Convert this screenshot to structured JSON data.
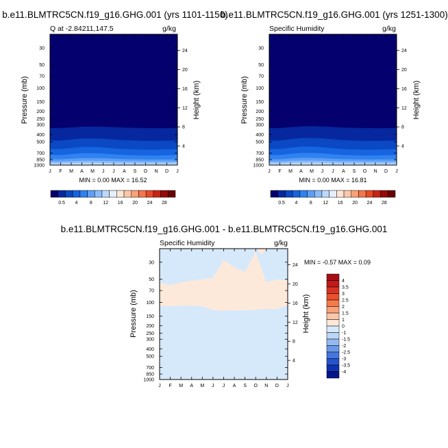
{
  "chart_data": [
    {
      "type": "heatmap",
      "title": "b.e11.BLMTRC5CN.f19_g16.GHG.001 (yrs 1101-1150)",
      "left_label": "Q at -2.84211,147.5",
      "right_label": "g/kg",
      "ylabel": "Pressure (mb)",
      "ylabel_right": "Height (km)",
      "y_scale": "log",
      "ylim": [
        1000,
        20
      ],
      "x_ticks": [
        "J",
        "F",
        "M",
        "A",
        "M",
        "J",
        "J",
        "A",
        "S",
        "O",
        "N",
        "D",
        "J"
      ],
      "y_ticks": [
        "30",
        "50",
        "70",
        "100",
        "150",
        "200",
        "250",
        "300",
        "400",
        "500",
        "700",
        "850",
        "1000"
      ],
      "height_ticks": [
        "24",
        "20",
        "16",
        "12",
        "8",
        "4"
      ],
      "stats": "MIN =   0.00 MAX =  16.52",
      "levels": [
        "0.5",
        "4",
        "8",
        "12",
        "16",
        "20",
        "24",
        "28"
      ],
      "colors": [
        "#04006e",
        "#06279e",
        "#0a48c4",
        "#1664e0",
        "#2f82f0",
        "#5c9ef6",
        "#8cbcfa",
        "#bcd9fc",
        "#e6f0fd",
        "#fde6d6",
        "#fcc6a8",
        "#f9a078",
        "#f4764c",
        "#e84a28",
        "#c82414",
        "#980a06",
        "#6a0202"
      ],
      "band_tops_mb": [
        [
          1000,
          1000,
          990,
          985,
          985,
          988,
          990,
          995,
          995,
          1000,
          1000,
          1000,
          1000
        ],
        [
          950,
          950,
          940,
          935,
          935,
          940,
          945,
          950,
          950,
          955,
          955,
          955,
          950
        ],
        [
          900,
          900,
          890,
          880,
          880,
          885,
          890,
          895,
          895,
          900,
          900,
          900,
          900
        ],
        [
          840,
          840,
          825,
          810,
          810,
          815,
          825,
          835,
          840,
          845,
          845,
          845,
          840
        ],
        [
          740,
          740,
          720,
          700,
          700,
          710,
          725,
          740,
          745,
          750,
          750,
          745,
          740
        ],
        [
          620,
          620,
          600,
          580,
          580,
          590,
          605,
          620,
          625,
          630,
          630,
          625,
          620
        ],
        [
          480,
          480,
          465,
          450,
          450,
          455,
          465,
          475,
          480,
          485,
          485,
          482,
          480
        ],
        [
          330,
          330,
          325,
          318,
          315,
          318,
          322,
          326,
          328,
          330,
          332,
          332,
          330
        ]
      ]
    },
    {
      "type": "heatmap",
      "title": "b.e11.BLMTRC5CN.f19_g16.GHG.001 (yrs 1251-1300)",
      "left_label": "Specific Humidity",
      "right_label": "g/kg",
      "ylabel": "Pressure (mb)",
      "ylabel_right": "Height (km)",
      "y_scale": "log",
      "ylim": [
        1000,
        20
      ],
      "x_ticks": [
        "J",
        "F",
        "M",
        "A",
        "M",
        "J",
        "J",
        "A",
        "S",
        "O",
        "N",
        "D",
        "J"
      ],
      "y_ticks": [
        "30",
        "50",
        "70",
        "100",
        "150",
        "200",
        "250",
        "300",
        "400",
        "500",
        "700",
        "850",
        "1000"
      ],
      "height_ticks": [
        "24",
        "20",
        "16",
        "12",
        "8",
        "4"
      ],
      "stats": "MIN =   0.00 MAX =  16.81",
      "levels": [
        "0.5",
        "4",
        "8",
        "12",
        "16",
        "20",
        "24",
        "28"
      ],
      "colors": [
        "#04006e",
        "#06279e",
        "#0a48c4",
        "#1664e0",
        "#2f82f0",
        "#5c9ef6",
        "#8cbcfa",
        "#bcd9fc",
        "#e6f0fd",
        "#fde6d6",
        "#fcc6a8",
        "#f9a078",
        "#f4764c",
        "#e84a28",
        "#c82414",
        "#980a06",
        "#6a0202"
      ],
      "band_tops_mb": [
        [
          1000,
          1000,
          985,
          980,
          980,
          985,
          990,
          995,
          995,
          1000,
          1000,
          1000,
          1000
        ],
        [
          950,
          950,
          935,
          930,
          930,
          935,
          945,
          950,
          950,
          955,
          955,
          955,
          950
        ],
        [
          900,
          900,
          885,
          875,
          875,
          880,
          890,
          895,
          895,
          900,
          900,
          900,
          900
        ],
        [
          840,
          840,
          820,
          805,
          805,
          812,
          825,
          835,
          840,
          845,
          845,
          845,
          840
        ],
        [
          740,
          740,
          715,
          695,
          695,
          705,
          725,
          740,
          745,
          750,
          750,
          745,
          740
        ],
        [
          620,
          620,
          595,
          575,
          575,
          585,
          605,
          620,
          625,
          630,
          630,
          625,
          620
        ],
        [
          480,
          480,
          460,
          445,
          445,
          450,
          462,
          475,
          480,
          485,
          485,
          482,
          480
        ],
        [
          330,
          330,
          322,
          315,
          312,
          315,
          320,
          326,
          328,
          330,
          332,
          332,
          330
        ]
      ]
    },
    {
      "type": "heatmap",
      "title": "b.e11.BLMTRC5CN.f19_g16.GHG.001 - b.e11.BLMTRC5CN.f19_g16.GHG.001",
      "left_label": "Specific Humidity",
      "right_label": "g/kg",
      "ylabel": "Pressure (mb)",
      "ylabel_right": "Height (km)",
      "y_scale": "log",
      "ylim": [
        1000,
        20
      ],
      "x_ticks": [
        "J",
        "F",
        "M",
        "A",
        "M",
        "J",
        "J",
        "A",
        "S",
        "O",
        "N",
        "D",
        "J"
      ],
      "y_ticks": [
        "30",
        "50",
        "70",
        "100",
        "150",
        "200",
        "250",
        "300",
        "400",
        "500",
        "700",
        "850",
        "1000"
      ],
      "height_ticks": [
        "24",
        "20",
        "16",
        "12",
        "8",
        "4"
      ],
      "stats": "MIN =  -0.57 MAX =   0.09",
      "levels": [
        "4",
        "3.5",
        "3",
        "2.5",
        "2",
        "1.5",
        "1",
        "0",
        "-1",
        "-1.5",
        "-2",
        "-2.5",
        "-3",
        "-3.5",
        "-4"
      ],
      "colors": [
        "#a50f15",
        "#c2191b",
        "#d93222",
        "#ea4f2e",
        "#f47a4a",
        "#f9a27a",
        "#fcc6a8",
        "#fde9da",
        "#d6e9fb",
        "#bcd6f7",
        "#94b9f1",
        "#6c98e8",
        "#4476de",
        "#2454cf",
        "#0f32b0",
        "#04158a"
      ],
      "positive_band_mb": {
        "top": [
          55,
          60,
          55,
          52,
          50,
          48,
          28,
          35,
          40,
          22,
          55,
          50,
          52
        ],
        "bottom": [
          110,
          112,
          110,
          110,
          112,
          125,
          128,
          126,
          126,
          125,
          120,
          122,
          108
        ]
      },
      "cap_mb": [
        980,
        1000
      ]
    }
  ]
}
